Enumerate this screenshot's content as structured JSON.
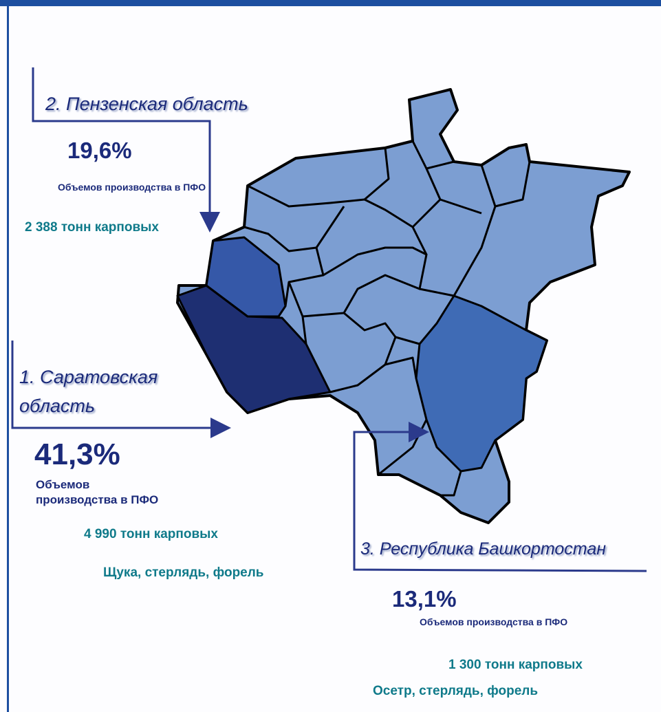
{
  "penza": {
    "heading": "2. Пензенская область",
    "share": "19,6%",
    "caption": "Объемов производства в ПФО",
    "volume": "2 388 тонн карповых"
  },
  "saratov": {
    "heading": [
      "1. Саратовская",
      "область"
    ],
    "share": "41,3%",
    "caption": [
      "Объемов",
      "производства в ПФО"
    ],
    "volume": "4 990 тонн карповых",
    "species": "Щука, стерлядь, форель"
  },
  "bashkortostan": {
    "heading": "3. Республика Башкортостан",
    "share": "13,1%",
    "caption": "Объемов производства в ПФО",
    "volume": "1 300 тонн карповых",
    "species": "Осетр, стерлядь, форель"
  }
}
